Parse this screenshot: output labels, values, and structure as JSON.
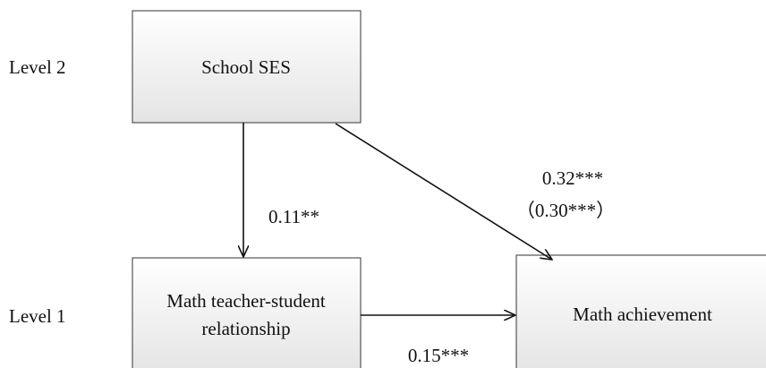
{
  "levels": [
    "Level 2",
    "Level 1"
  ],
  "nodes": [
    {
      "label": [
        "School SES"
      ]
    },
    {
      "label": [
        "Math teacher-student",
        "relationship"
      ]
    },
    {
      "label": [
        "Math achievement"
      ]
    }
  ],
  "edges": [
    {
      "from": "School SES",
      "to": "Math teacher-student relationship",
      "labels": [
        "0.11**"
      ]
    },
    {
      "from": "School SES",
      "to": "Math achievement",
      "labels": [
        "0.32***",
        "（0.30***）"
      ]
    },
    {
      "from": "Math teacher-student relationship",
      "to": "Math achievement",
      "labels": [
        "0.15***"
      ]
    }
  ]
}
